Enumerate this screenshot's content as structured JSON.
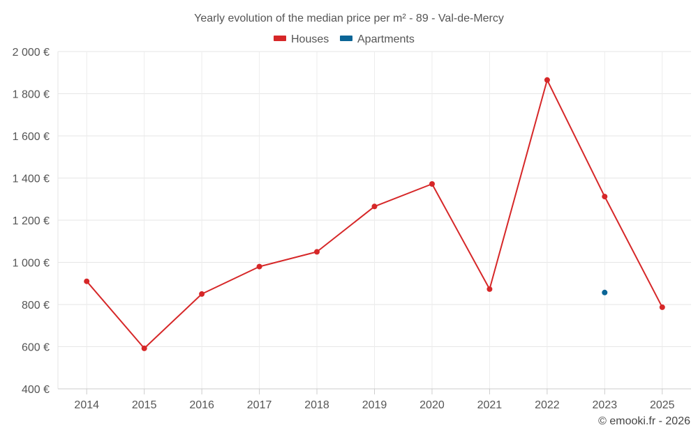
{
  "chart_data": {
    "type": "line",
    "title": "Yearly evolution of the median price per m² - 89 - Val-de-Mercy",
    "xlabel": "",
    "ylabel": "",
    "categories": [
      "2014",
      "2015",
      "2016",
      "2017",
      "2018",
      "2019",
      "2020",
      "2021",
      "2022",
      "2023",
      "2025"
    ],
    "ylim": [
      400,
      2000
    ],
    "yticks": [
      400,
      600,
      800,
      1000,
      1200,
      1400,
      1600,
      1800,
      2000
    ],
    "ytick_labels": [
      "400 €",
      "600 €",
      "800 €",
      "1 000 €",
      "1 200 €",
      "1 400 €",
      "1 600 €",
      "1 800 €",
      "2 000 €"
    ],
    "grid": true,
    "legend_position": "top-center",
    "series": [
      {
        "name": "Houses",
        "color": "#d62728",
        "values": [
          910,
          592,
          850,
          980,
          1050,
          1265,
          1372,
          873,
          1865,
          1312,
          787
        ]
      },
      {
        "name": "Apartments",
        "color": "#0b6596",
        "values": [
          null,
          null,
          null,
          null,
          null,
          null,
          null,
          null,
          null,
          857,
          null
        ]
      }
    ]
  },
  "credit": "© emooki.fr - 2026"
}
